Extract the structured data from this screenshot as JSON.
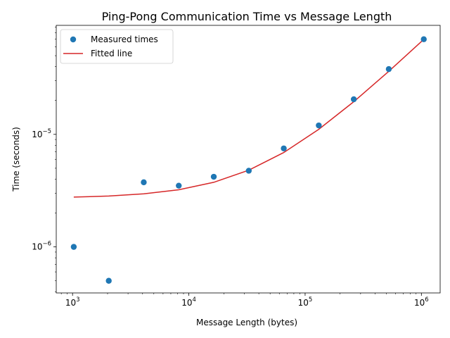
{
  "chart_data": {
    "type": "scatter",
    "title": "Ping-Pong Communication Time vs Message Length",
    "xlabel": "Message Length (bytes)",
    "ylabel": "Time (seconds)",
    "xscale": "log",
    "yscale": "log",
    "xlim": [
      724,
      1450000
    ],
    "ylim": [
      3.9e-07,
      9.3e-05
    ],
    "x_ticks": [
      {
        "value": 1000,
        "base": "10",
        "exp": "3"
      },
      {
        "value": 10000,
        "base": "10",
        "exp": "4"
      },
      {
        "value": 100000,
        "base": "10",
        "exp": "5"
      },
      {
        "value": 1000000,
        "base": "10",
        "exp": "6"
      }
    ],
    "y_ticks": [
      {
        "value": 1e-06,
        "base": "10",
        "exp": "−6"
      },
      {
        "value": 1e-05,
        "base": "10",
        "exp": "−5"
      }
    ],
    "grid": false,
    "legend": "upper-left",
    "series": [
      {
        "name": "Measured times",
        "kind": "scatter",
        "color": "#1f77b4",
        "x": [
          1024,
          2048,
          4096,
          8192,
          16384,
          32768,
          65536,
          131072,
          262144,
          524288,
          1048576
        ],
        "y": [
          1e-06,
          5e-07,
          3.75e-06,
          3.5e-06,
          4.2e-06,
          4.75e-06,
          7.5e-06,
          1.2e-05,
          2.05e-05,
          3.8e-05,
          7e-05
        ]
      },
      {
        "name": "Fitted line",
        "kind": "line",
        "color": "#d62728",
        "x": [
          1024,
          2048,
          4096,
          8192,
          16384,
          32768,
          65536,
          131072,
          262144,
          524288,
          1048576
        ],
        "y": [
          2.77e-06,
          2.83e-06,
          2.96e-06,
          3.22e-06,
          3.75e-06,
          4.8e-06,
          6.9e-06,
          1.11e-05,
          1.95e-05,
          3.63e-05,
          6.98e-05
        ]
      }
    ]
  }
}
